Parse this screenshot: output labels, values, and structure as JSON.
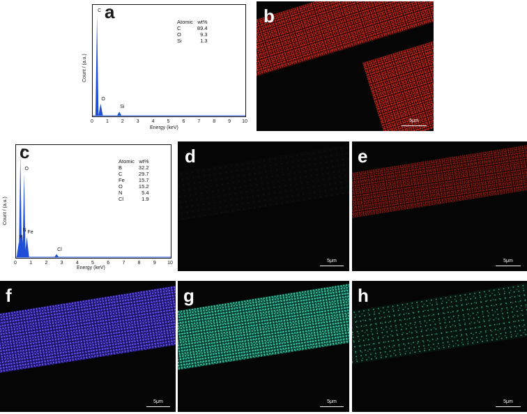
{
  "panels": {
    "a": "a",
    "b": "b",
    "c": "c",
    "d": "d",
    "e": "e",
    "f": "f",
    "g": "g",
    "h": "h"
  },
  "scalebar_label": "5μm",
  "chart_data": [
    {
      "type": "line",
      "panel": "a",
      "xlabel": "Energy (keV)",
      "ylabel": "Count / (a.u.)",
      "xlim": [
        0,
        10
      ],
      "x_ticks": [
        "0",
        "1",
        "2",
        "3",
        "4",
        "5",
        "6",
        "7",
        "8",
        "9",
        "10"
      ],
      "grid": false,
      "peaks": [
        {
          "label": "C",
          "x": 0.28,
          "y": 100
        },
        {
          "label": "O",
          "x": 0.52,
          "y": 12
        },
        {
          "label": "Si",
          "x": 1.74,
          "y": 4
        }
      ],
      "table": {
        "headers": [
          "Atomic",
          "wt%"
        ],
        "rows": [
          [
            "C",
            "89.4"
          ],
          [
            "O",
            "9.3"
          ],
          [
            "Si",
            "1.3"
          ]
        ]
      },
      "color": "#1f4fd8"
    },
    {
      "type": "line",
      "panel": "c",
      "xlabel": "Energy (keV)",
      "ylabel": "Count / (a.u.)",
      "xlim": [
        0,
        10
      ],
      "x_ticks": [
        "0",
        "1",
        "2",
        "3",
        "4",
        "5",
        "6",
        "7",
        "8",
        "9",
        "10"
      ],
      "grid": false,
      "peaks": [
        {
          "label": "C",
          "x": 0.28,
          "y": 100
        },
        {
          "label": "O",
          "x": 0.52,
          "y": 82
        },
        {
          "label": "B",
          "x": 0.18,
          "y": 15
        },
        {
          "label": "N",
          "x": 0.39,
          "y": 22
        },
        {
          "label": "Fe",
          "x": 0.7,
          "y": 20
        },
        {
          "label": "Cl",
          "x": 2.62,
          "y": 3
        }
      ],
      "table": {
        "headers": [
          "Atomic",
          "wt%"
        ],
        "rows": [
          [
            "B",
            "32.2"
          ],
          [
            "C",
            "29.7"
          ],
          [
            "Fe",
            "15.7"
          ],
          [
            "O",
            "15.2"
          ],
          [
            "N",
            "5.4"
          ],
          [
            "Cl",
            "1.9"
          ]
        ]
      },
      "color": "#1f4fd8"
    }
  ]
}
